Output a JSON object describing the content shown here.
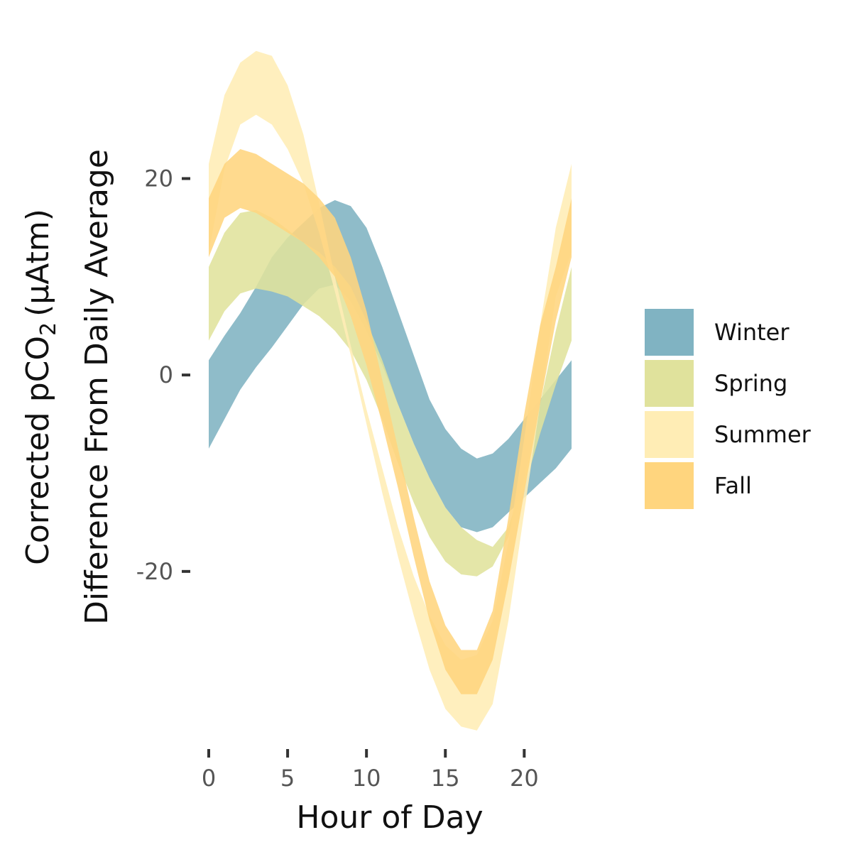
{
  "chart_data": {
    "type": "area",
    "x_label": "Hour of Day",
    "y_label_line1": "Corrected pCO",
    "y_label_sub": "2",
    "y_label_unit": "(μAtm)",
    "y_label_line2": "Difference From Daily Average",
    "xlim": [
      0,
      23
    ],
    "ylim": [
      -37,
      35
    ],
    "x_ticks": [
      0,
      5,
      10,
      15,
      20
    ],
    "x_tick_labels": [
      "0",
      "5",
      "10",
      "15",
      "20"
    ],
    "y_ticks": [
      20,
      0,
      -20
    ],
    "y_tick_labels": [
      "20",
      "0",
      "-20"
    ],
    "grid": false,
    "legend_position": "right",
    "x": [
      0,
      1,
      2,
      3,
      4,
      5,
      6,
      7,
      8,
      9,
      10,
      11,
      12,
      13,
      14,
      15,
      16,
      17,
      18,
      19,
      20,
      21,
      22,
      23
    ],
    "series": [
      {
        "name": "Winter",
        "color": "#80B3C2",
        "lower": [
          -7.5,
          -4.5,
          -1.5,
          0.8,
          2.8,
          5.0,
          7.2,
          8.8,
          9.2,
          7.5,
          4.5,
          1.0,
          -3.0,
          -7.0,
          -10.5,
          -13.5,
          -15.5,
          -16.0,
          -15.5,
          -14.0,
          -12.5,
          -11.0,
          -9.5,
          -7.5
        ],
        "upper": [
          1.5,
          4.0,
          6.3,
          9.0,
          12.0,
          14.0,
          15.5,
          17.0,
          17.8,
          17.2,
          15.0,
          11.0,
          6.5,
          2.0,
          -2.5,
          -5.5,
          -7.5,
          -8.5,
          -8.0,
          -6.5,
          -4.5,
          -2.5,
          -0.5,
          1.5
        ]
      },
      {
        "name": "Spring",
        "color": "#E0E29C",
        "lower": [
          3.5,
          6.5,
          8.3,
          8.8,
          8.5,
          8.0,
          7.0,
          6.0,
          4.5,
          2.5,
          -0.5,
          -4.5,
          -9.0,
          -13.0,
          -16.5,
          -19.0,
          -20.3,
          -20.5,
          -19.5,
          -16.5,
          -11.5,
          -6.0,
          -1.0,
          3.5
        ],
        "upper": [
          11.0,
          14.5,
          16.5,
          16.8,
          16.0,
          14.8,
          13.5,
          12.5,
          11.0,
          9.0,
          5.5,
          1.5,
          -3.0,
          -7.0,
          -10.5,
          -13.5,
          -15.5,
          -16.8,
          -17.5,
          -15.5,
          -10.5,
          -3.0,
          4.5,
          11.0
        ]
      },
      {
        "name": "Summer",
        "color": "#FFEDB5",
        "lower": [
          12.5,
          21.0,
          25.5,
          26.5,
          25.5,
          23.0,
          19.5,
          14.5,
          8.5,
          2.0,
          -5.0,
          -12.0,
          -18.5,
          -24.5,
          -30.0,
          -34.0,
          -35.8,
          -36.2,
          -33.5,
          -25.0,
          -14.0,
          -3.0,
          8.0,
          12.5
        ],
        "upper": [
          21.5,
          28.5,
          31.8,
          33.0,
          32.5,
          29.5,
          24.5,
          17.5,
          10.0,
          3.0,
          -3.5,
          -9.5,
          -15.5,
          -20.5,
          -24.5,
          -27.5,
          -29.0,
          -28.5,
          -25.0,
          -17.0,
          -6.5,
          5.0,
          15.0,
          21.5
        ]
      },
      {
        "name": "Fall",
        "color": "#FFD57E",
        "lower": [
          12.0,
          16.0,
          17.0,
          16.5,
          15.5,
          14.5,
          13.5,
          12.0,
          10.0,
          6.0,
          1.0,
          -5.0,
          -11.5,
          -18.5,
          -25.0,
          -30.0,
          -32.5,
          -32.5,
          -29.0,
          -21.0,
          -12.0,
          -3.0,
          5.5,
          12.0
        ],
        "upper": [
          18.0,
          21.5,
          23.0,
          22.5,
          21.5,
          20.5,
          19.5,
          18.0,
          16.0,
          12.0,
          6.5,
          -0.5,
          -7.5,
          -14.5,
          -21.0,
          -25.5,
          -28.0,
          -28.0,
          -24.0,
          -14.5,
          -4.0,
          5.0,
          11.0,
          18.0
        ]
      }
    ]
  }
}
